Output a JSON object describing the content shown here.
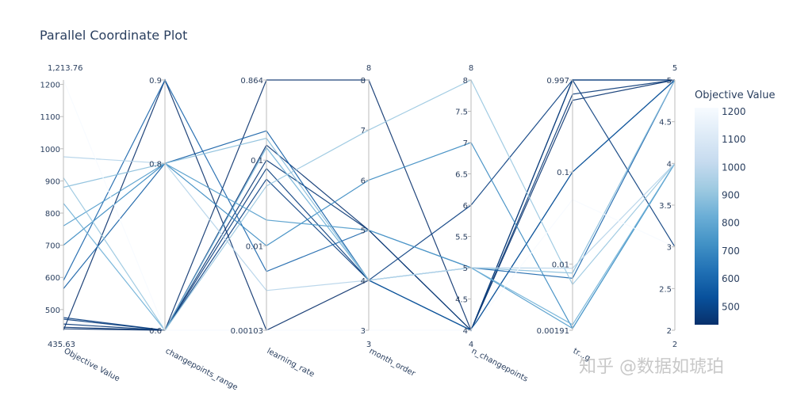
{
  "chart_data": {
    "type": "parallel_coordinates",
    "title": "Parallel Coordinate Plot",
    "colorbar": {
      "title": "Objective Value",
      "min": 435.63,
      "max": 1213.76,
      "ticks": [
        "1200",
        "1100",
        "1000",
        "900",
        "800",
        "700",
        "600",
        "500"
      ],
      "tick_values": [
        1200,
        1100,
        1000,
        900,
        800,
        700,
        600,
        500
      ],
      "colors": [
        "#08306b",
        "#08519c",
        "#2171b5",
        "#4292c6",
        "#6baed6",
        "#9ecae1",
        "#c6dbef",
        "#deebf7",
        "#f7fbff"
      ]
    },
    "dimensions": [
      {
        "name": "Objective Value",
        "scale": "linear",
        "range": [
          435.63,
          1213.76
        ],
        "min_label": "435.63",
        "max_label": "1,213.76",
        "ticks": [
          "1200",
          "1100",
          "1000",
          "900",
          "800",
          "700",
          "600",
          "500"
        ],
        "tick_values": [
          1200,
          1100,
          1000,
          900,
          800,
          700,
          600,
          500
        ]
      },
      {
        "name": "changepoints_range",
        "scale": "linear",
        "range": [
          0.6,
          0.9
        ],
        "ticks": [
          "0.9",
          "0.8",
          "0.6"
        ],
        "tick_values": [
          0.9,
          0.8,
          0.6
        ]
      },
      {
        "name": "learning_rate",
        "scale": "log",
        "range": [
          0.00103,
          0.864
        ],
        "ticks": [
          "0.864",
          "0.1",
          "0.01",
          "0.00103"
        ],
        "tick_values": [
          0.864,
          0.1,
          0.01,
          0.00103
        ]
      },
      {
        "name": "month_order",
        "scale": "linear",
        "range": [
          3,
          8
        ],
        "min_label": "3",
        "max_label": "8",
        "ticks": [
          "8",
          "7",
          "6",
          "5",
          "4",
          "3"
        ],
        "tick_values": [
          8,
          7,
          6,
          5,
          4,
          3
        ]
      },
      {
        "name": "n_changepoints",
        "scale": "linear",
        "range": [
          4,
          8
        ],
        "min_label": "4",
        "max_label": "8",
        "ticks": [
          "8",
          "7.5",
          "7",
          "6.5",
          "6",
          "5.5",
          "5",
          "4.5",
          "4"
        ],
        "tick_values": [
          8,
          7.5,
          7,
          6.5,
          6,
          5.5,
          5,
          4.5,
          4
        ]
      },
      {
        "name": "tr...g",
        "scale": "log",
        "range": [
          0.00191,
          0.997
        ],
        "ticks": [
          "0.997",
          "0.1",
          "0.01",
          "0.00191"
        ],
        "tick_values": [
          0.997,
          0.1,
          0.01,
          0.00191
        ]
      },
      {
        "name": "",
        "scale": "linear",
        "range": [
          2,
          5
        ],
        "min_label": "2",
        "max_label": "5",
        "ticks": [
          "5",
          "4.5",
          "4",
          "3.5",
          "3",
          "2.5",
          "2"
        ],
        "tick_values": [
          5,
          4.5,
          4,
          3.5,
          3,
          2.5,
          2
        ]
      }
    ],
    "lines": [
      {
        "values": [
          435.63,
          0.9,
          0.00103,
          4,
          4,
          0.1,
          5
        ]
      },
      {
        "values": [
          440,
          0.6,
          0.864,
          8,
          4,
          0.997,
          5
        ]
      },
      {
        "values": [
          445,
          0.6,
          0.15,
          5,
          4,
          0.6,
          5
        ]
      },
      {
        "values": [
          455,
          0.6,
          0.1,
          5,
          4,
          0.7,
          5
        ]
      },
      {
        "values": [
          470,
          0.6,
          0.08,
          4,
          4,
          0.997,
          3
        ]
      },
      {
        "values": [
          475,
          0.6,
          0.06,
          4,
          6,
          0.997,
          5
        ]
      },
      {
        "values": [
          565,
          0.8,
          0.22,
          4,
          4,
          0.1,
          5
        ]
      },
      {
        "values": [
          590,
          0.9,
          0.005,
          5,
          5,
          0.007,
          5
        ]
      },
      {
        "values": [
          700,
          0.8,
          0.01,
          6,
          7,
          0.002,
          4
        ]
      },
      {
        "values": [
          760,
          0.8,
          0.02,
          5,
          5,
          0.002,
          4
        ]
      },
      {
        "values": [
          830,
          0.6,
          0.14,
          4,
          5,
          0.0022,
          4
        ]
      },
      {
        "values": [
          880,
          0.8,
          0.18,
          4,
          5,
          0.008,
          5
        ]
      },
      {
        "values": [
          910,
          0.6,
          0.05,
          7,
          8,
          0.006,
          4
        ]
      },
      {
        "values": [
          975,
          0.8,
          0.003,
          4,
          5,
          0.009,
          4
        ]
      },
      {
        "values": [
          1213.76,
          0.6,
          0.00103,
          3,
          4,
          0.05,
          3
        ]
      }
    ],
    "watermark": "知乎 @数据如琥珀"
  }
}
